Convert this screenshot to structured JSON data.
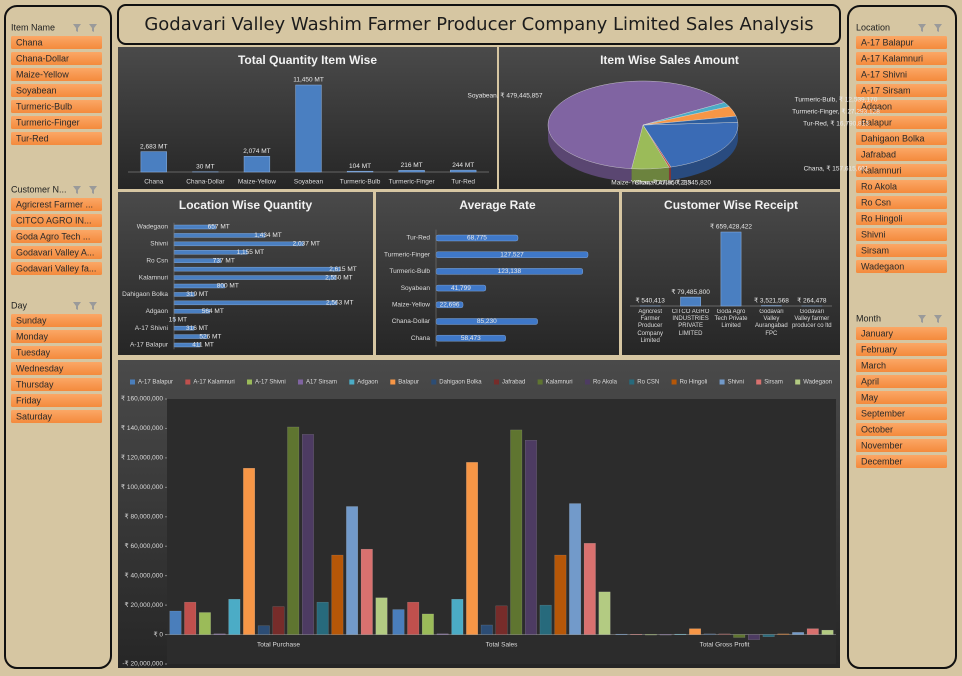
{
  "title": "Godavari Valley Washim Farmer Producer Company Limited Sales Analysis",
  "slicers": [
    {
      "title": "Item Name",
      "items": [
        "Chana",
        "Chana-Dollar",
        "Maize-Yellow",
        "Soyabean",
        "Turmeric-Bulb",
        "Turmeric-Finger",
        "Tur-Red"
      ]
    },
    {
      "title": "Customer N...",
      "items": [
        "Agricrest Farmer ...",
        "CITCO AGRO IN...",
        "Goda Agro Tech ...",
        "Godavari Valley A...",
        "Godavari Valley fa..."
      ]
    },
    {
      "title": "Day",
      "items": [
        "Sunday",
        "Monday",
        "Tuesday",
        "Wednesday",
        "Thursday",
        "Friday",
        "Saturday"
      ]
    },
    {
      "title": "Location",
      "items": [
        "A-17 Balapur",
        "A-17 Kalamnuri",
        "A-17 Shivni",
        "A-17 Sirsam",
        "Adgaon",
        "Balapur",
        "Dahigaon Bolka",
        "Jafrabad",
        "Kalamnuri",
        "Ro Akola",
        "Ro Csn",
        "Ro Hingoli",
        "Shivni",
        "Sirsam",
        "Wadegaon"
      ]
    },
    {
      "title": "Month",
      "items": [
        "January",
        "February",
        "March",
        "April",
        "May",
        "September",
        "October",
        "November",
        "December"
      ]
    }
  ],
  "chart_data": [
    {
      "type": "bar",
      "title": "Total Quantity Item Wise",
      "categories": [
        "Chana",
        "Chana-Dollar",
        "Maize-Yellow",
        "Soyabean",
        "Turmeric-Bulb",
        "Turmeric-Finger",
        "Tur-Red"
      ],
      "values": [
        2683,
        30,
        2074,
        11450,
        104,
        216,
        244
      ],
      "value_labels": [
        "2,683 MT",
        "30 MT",
        "2,074 MT",
        "11,450 MT",
        "104 MT",
        "216 MT",
        "244 MT"
      ],
      "color": "#4a7fc1"
    },
    {
      "type": "pie",
      "title": "Item Wise Sales Amount",
      "categories": [
        "Chana",
        "Chana-Dollar",
        "Maize-Yellow",
        "Soyabean",
        "Turmeric-Bulb",
        "Turmeric-Finger",
        "Tur-Red"
      ],
      "values": [
        157615661,
        2545820,
        47050233,
        479445857,
        12539170,
        27293128,
        16790813
      ],
      "value_labels": [
        "Chana, ₹ 157,615,661",
        "Chana-Dollar, ₹ 2,545,820",
        "Maize-Yellow, ₹ 47,050,233",
        "Soyabean, ₹ 479,445,857",
        "Turmeric-Bulb, ₹ 12,539,170",
        "Turmeric-Finger, ₹ 27,293,128",
        "Tur-Red, ₹ 16,790,813"
      ],
      "colors": [
        "#3a6bb5",
        "#c0504d",
        "#9bbb59",
        "#8064a2",
        "#4bacc6",
        "#f79646",
        "#2c5d9e"
      ]
    },
    {
      "type": "bar",
      "orientation": "horizontal",
      "title": "Location Wise Quantity",
      "categories": [
        "Wadegaon",
        null,
        "Shivni",
        null,
        "Ro Csn",
        null,
        "Kalamnuri",
        null,
        "Dahigaon Bolka",
        null,
        "Adgaon",
        null,
        "A-17 Shivni",
        null,
        "A-17 Balapur"
      ],
      "values": [
        657,
        1434,
        2037,
        1155,
        737,
        2615,
        2550,
        800,
        319,
        2563,
        564,
        15,
        316,
        526,
        411
      ],
      "value_labels": [
        "657 MT",
        "1,434 MT",
        "2,037 MT",
        "1,155 MT",
        "737 MT",
        "2,615 MT",
        "2,550 MT",
        "800 MT",
        "319 MT",
        "2,563 MT",
        "564 MT",
        "15 MT",
        "316 MT",
        "526 MT",
        "411 MT"
      ],
      "color": "#4a7fc1"
    },
    {
      "type": "bar",
      "orientation": "horizontal",
      "title": "Average Rate",
      "categories": [
        "Tur-Red",
        "Turmeric-Finger",
        "Turmeric-Bulb",
        "Soyabean",
        "Maize-Yellow",
        "Chana-Dollar",
        "Chana"
      ],
      "values": [
        68775,
        127527,
        123138,
        41799,
        22696,
        85230,
        58473
      ],
      "value_labels": [
        "68,775",
        "127,527",
        "123,138",
        "41,799",
        "22,696",
        "85,230",
        "58,473"
      ],
      "color": "#3f78c8"
    },
    {
      "type": "bar",
      "title": "Customer Wise Receipt",
      "categories": [
        "Agricrest Farmer Producer Company Limited",
        "CITCO AGRO INDUSTRIES PRIVATE LIMITED",
        "Goda Agro Tech Private Limited",
        "Godavari Valley Aurangabad FPC",
        "Godavari Valley farmer producer co ltd"
      ],
      "values": [
        540413,
        79485800,
        659428422,
        3521568,
        264478
      ],
      "value_labels": [
        "₹ 540,413",
        "₹ 79,485,800",
        "₹ 659,428,422",
        "₹ 3,521,568",
        "₹ 264,478"
      ],
      "color": "#4a7fc1"
    },
    {
      "type": "bar",
      "legend": "top",
      "grid": false,
      "categories": [
        "Total Purchase",
        "Total Sales",
        "Total Gross Profit"
      ],
      "ylim": [
        -20000000,
        160000000
      ],
      "yticks": [
        {
          "value": -20000000,
          "label": "-₹ 20,000,000"
        },
        {
          "value": 0,
          "label": "₹ 0"
        },
        {
          "value": 20000000,
          "label": "₹ 20,000,000"
        },
        {
          "value": 40000000,
          "label": "₹ 40,000,000"
        },
        {
          "value": 60000000,
          "label": "₹ 60,000,000"
        },
        {
          "value": 80000000,
          "label": "₹ 80,000,000"
        },
        {
          "value": 100000000,
          "label": "₹ 100,000,000"
        },
        {
          "value": 120000000,
          "label": "₹ 120,000,000"
        },
        {
          "value": 140000000,
          "label": "₹ 140,000,000"
        },
        {
          "value": 160000000,
          "label": "₹ 160,000,000"
        }
      ],
      "series": [
        {
          "name": "A-17 Balapur",
          "color": "#4a7ebb",
          "values": [
            16000000,
            17000000,
            300000
          ]
        },
        {
          "name": "A-17 Kalamnuri",
          "color": "#c0504d",
          "values": [
            22000000,
            22000000,
            200000
          ]
        },
        {
          "name": "A-17 Shivni",
          "color": "#9bbb59",
          "values": [
            15000000,
            14000000,
            -300000
          ]
        },
        {
          "name": "A17 Sirsam",
          "color": "#8064a2",
          "values": [
            500000,
            500000,
            -100000
          ]
        },
        {
          "name": "Adgaon",
          "color": "#4bacc6",
          "values": [
            24000000,
            24000000,
            300000
          ]
        },
        {
          "name": "Balapur",
          "color": "#f79646",
          "values": [
            113000000,
            117000000,
            4000000
          ]
        },
        {
          "name": "Dahigaon Bolka",
          "color": "#2c4d75",
          "values": [
            6000000,
            6500000,
            500000
          ]
        },
        {
          "name": "Jafrabad",
          "color": "#772c2a",
          "values": [
            19000000,
            19500000,
            500000
          ]
        },
        {
          "name": "Kalamnuri",
          "color": "#5f7530",
          "values": [
            141000000,
            139000000,
            -2000000
          ]
        },
        {
          "name": "Ro Akola",
          "color": "#4d3b62",
          "values": [
            136000000,
            132000000,
            -3500000
          ]
        },
        {
          "name": "Ro CSN",
          "color": "#276a7c",
          "values": [
            22000000,
            20000000,
            -1500000
          ]
        },
        {
          "name": "Ro Hingoli",
          "color": "#b65708",
          "values": [
            54000000,
            54000000,
            500000
          ]
        },
        {
          "name": "Shivni",
          "color": "#729aca",
          "values": [
            87000000,
            89000000,
            1500000
          ]
        },
        {
          "name": "Sirsam",
          "color": "#d9716f",
          "values": [
            58000000,
            62000000,
            4000000
          ]
        },
        {
          "name": "Wadegaon",
          "color": "#b3cb82",
          "values": [
            25000000,
            29000000,
            3000000
          ]
        }
      ]
    }
  ]
}
